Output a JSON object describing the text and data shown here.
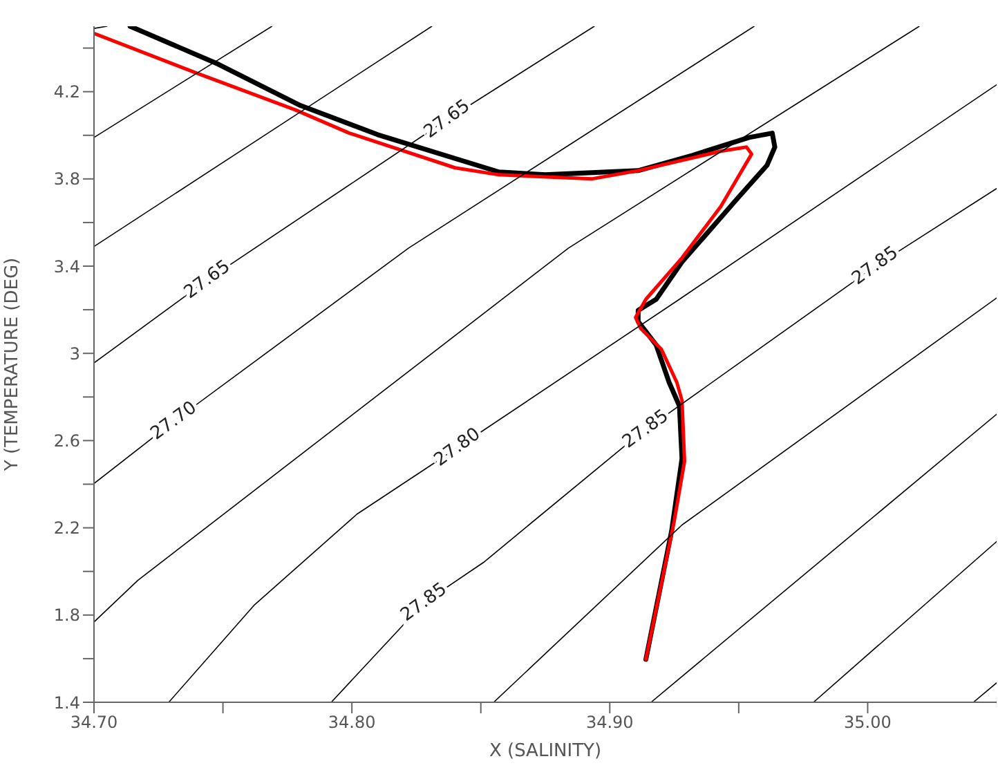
{
  "chart_data": {
    "type": "line",
    "xlabel": "X (SALINITY)",
    "ylabel": "Y (TEMPERATURE (DEG)",
    "xlim": [
      34.7,
      35.05
    ],
    "xticks": [
      {
        "value": 34.7,
        "label": "34.70"
      },
      {
        "value": 34.75,
        "label": null
      },
      {
        "value": 34.8,
        "label": "34.80"
      },
      {
        "value": 34.85,
        "label": null
      },
      {
        "value": 34.9,
        "label": "34.90"
      },
      {
        "value": 34.95,
        "label": null
      },
      {
        "value": 35.0,
        "label": "35.00"
      }
    ],
    "ylim": [
      1.4,
      4.5
    ],
    "yticks": [
      1.4,
      {
        "value": 1.6,
        "label": null
      },
      1.8,
      {
        "value": 2.0,
        "label": null
      },
      2.2,
      {
        "value": 2.4,
        "label": null
      },
      2.6,
      {
        "value": 2.8,
        "label": null
      },
      3.0,
      {
        "value": 3.2,
        "label": null
      },
      3.4,
      {
        "value": 3.6,
        "label": null
      },
      3.8,
      {
        "value": 4.0,
        "label": null
      },
      4.2,
      {
        "value": 4.4,
        "label": null
      }
    ],
    "marker": "none",
    "line_style": "solid",
    "series": [
      {
        "color": "#000000",
        "x": [
          34.714,
          34.748,
          34.78,
          34.81,
          34.857,
          34.875,
          34.911,
          34.932,
          34.954,
          34.963,
          34.964,
          34.961,
          34.95,
          34.928,
          34.918,
          34.911,
          34.911,
          34.918,
          34.923,
          34.927,
          34.928,
          34.924,
          34.914
        ],
        "values": [
          4.5,
          4.327,
          4.137,
          4.003,
          3.832,
          3.819,
          3.838,
          3.908,
          3.99,
          4.01,
          3.946,
          3.863,
          3.717,
          3.419,
          3.248,
          3.197,
          3.146,
          3.038,
          2.867,
          2.759,
          2.517,
          2.187,
          1.597
        ]
      },
      {
        "color": "#ff0000",
        "x": [
          34.7,
          34.739,
          34.778,
          34.799,
          34.84,
          34.857,
          34.893,
          34.911,
          34.943,
          34.953,
          34.955,
          34.943,
          34.928,
          34.914,
          34.91,
          34.912,
          34.92,
          34.926,
          34.928,
          34.929,
          34.925,
          34.914
        ],
        "values": [
          4.467,
          4.289,
          4.117,
          4.01,
          3.851,
          3.819,
          3.8,
          3.838,
          3.927,
          3.946,
          3.914,
          3.673,
          3.438,
          3.248,
          3.165,
          3.114,
          3.019,
          2.867,
          2.784,
          2.505,
          2.232,
          1.597
        ]
      },
      {
        "color": "#000000",
        "x": [
          34.7,
          34.705
        ],
        "values": [
          4.49,
          4.5
        ]
      },
      {
        "color": "#000000",
        "x": [
          34.7,
          34.769
        ],
        "values": [
          3.99,
          4.5
        ]
      },
      {
        "color": "#000000",
        "x": [
          34.7,
          34.831
        ],
        "values": [
          3.49,
          4.5
        ]
      },
      {
        "color": "#000000",
        "x": [
          34.7,
          34.744,
          34.837,
          34.894
        ],
        "values": [
          2.956,
          3.337,
          4.073,
          4.5
        ]
      },
      {
        "color": "#000000",
        "x": [
          34.7,
          34.731,
          34.822,
          34.956
        ],
        "values": [
          2.403,
          2.689,
          3.483,
          4.5
        ]
      },
      {
        "color": "#000000",
        "x": [
          34.7,
          34.717,
          34.884,
          35.02
        ],
        "values": [
          1.768,
          1.959,
          3.483,
          4.5
        ]
      },
      {
        "color": "#000000",
        "x": [
          34.729,
          34.762,
          34.802,
          34.841,
          34.927,
          35.05
        ],
        "values": [
          1.4,
          1.844,
          2.263,
          2.568,
          3.248,
          4.232
        ]
      },
      {
        "color": "#000000",
        "x": [
          34.792,
          34.828,
          34.851,
          34.905,
          34.914,
          35.003,
          35.05
        ],
        "values": [
          1.4,
          1.857,
          2.041,
          2.568,
          2.651,
          3.4,
          3.756
        ]
      },
      {
        "color": "#000000",
        "x": [
          34.855,
          34.928,
          35.05
        ],
        "values": [
          1.4,
          2.213,
          3.254
        ]
      },
      {
        "color": "#000000",
        "x": [
          34.916,
          35.05
        ],
        "values": [
          1.4,
          2.721
        ]
      },
      {
        "color": "#000000",
        "x": [
          34.979,
          35.05
        ],
        "values": [
          1.4,
          2.137
        ]
      },
      {
        "color": "#000000",
        "x": [
          35.041,
          35.05
        ],
        "values": [
          1.4,
          1.489
        ]
      }
    ],
    "annotations": [
      {
        "text": "27.65",
        "x": 34.837,
        "y": 4.073
      },
      {
        "text": "27.65",
        "x": 34.744,
        "y": 3.337
      },
      {
        "text": "27.70",
        "x": 34.731,
        "y": 2.689
      },
      {
        "text": "27.80",
        "x": 34.841,
        "y": 2.568
      },
      {
        "text": "27.85",
        "x": 34.828,
        "y": 1.857
      },
      {
        "text": "27.85",
        "x": 34.914,
        "y": 2.651
      },
      {
        "text": "27.85",
        "x": 35.003,
        "y": 3.4
      }
    ]
  }
}
